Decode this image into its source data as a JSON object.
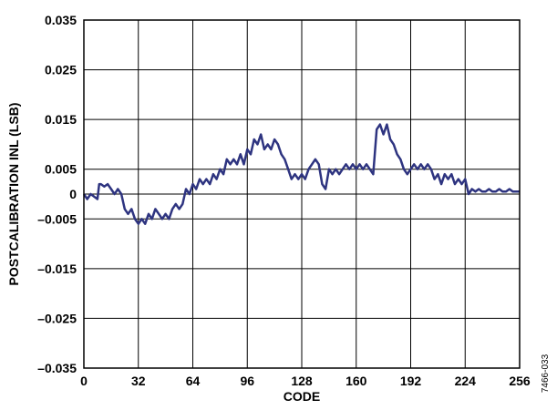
{
  "chart_data": {
    "type": "line",
    "title": "",
    "xlabel": "CODE",
    "ylabel": "POSTCALIBRATION INL (LSB)",
    "xlim": [
      0,
      256
    ],
    "ylim": [
      -0.035,
      0.035
    ],
    "grid": true,
    "x_ticks": [
      0,
      32,
      64,
      96,
      128,
      160,
      192,
      224,
      256
    ],
    "x_tick_labels": [
      "0",
      "32",
      "64",
      "96",
      "128",
      "160",
      "192",
      "224",
      "256"
    ],
    "y_ticks": [
      0.035,
      0.025,
      0.015,
      0.005,
      0,
      -0.005,
      -0.015,
      -0.025,
      -0.035
    ],
    "y_tick_labels": [
      "0.035",
      "0.025",
      "0.015",
      "0.005",
      "0",
      "–0.005",
      "–0.015",
      "–0.025",
      "–0.035"
    ],
    "line_color": "#2e3480",
    "figure_id": "7466-033",
    "series": [
      {
        "x": [
          0,
          2,
          4,
          6,
          8,
          9,
          10,
          12,
          14,
          16,
          18,
          20,
          22,
          24,
          26,
          28,
          30,
          32,
          34,
          36,
          38,
          40,
          42,
          44,
          46,
          48,
          50,
          52,
          54,
          56,
          58,
          60,
          62,
          64,
          66,
          68,
          70,
          72,
          74,
          76,
          78,
          80,
          82,
          84,
          86,
          88,
          90,
          92,
          94,
          96,
          98,
          100,
          102,
          104,
          106,
          108,
          110,
          112,
          114,
          116,
          118,
          120,
          122,
          124,
          126,
          128,
          130,
          132,
          134,
          136,
          138,
          140,
          142,
          144,
          146,
          148,
          150,
          152,
          154,
          156,
          158,
          160,
          162,
          164,
          166,
          168,
          170,
          172,
          174,
          176,
          178,
          180,
          182,
          184,
          186,
          188,
          190,
          192,
          194,
          196,
          198,
          200,
          202,
          204,
          206,
          208,
          210,
          212,
          214,
          216,
          218,
          220,
          222,
          224,
          226,
          228,
          230,
          232,
          234,
          236,
          238,
          240,
          242,
          244,
          246,
          248,
          250,
          252,
          254,
          256
        ],
        "y": [
          0,
          -0.001,
          0,
          -0.0005,
          -0.001,
          0.002,
          0.002,
          0.0015,
          0.002,
          0.001,
          0,
          0.001,
          0,
          -0.003,
          -0.004,
          -0.003,
          -0.005,
          -0.006,
          -0.005,
          -0.006,
          -0.004,
          -0.005,
          -0.003,
          -0.004,
          -0.005,
          -0.004,
          -0.005,
          -0.003,
          -0.002,
          -0.003,
          -0.002,
          0.001,
          0,
          0.002,
          0.001,
          0.003,
          0.002,
          0.003,
          0.002,
          0.004,
          0.003,
          0.005,
          0.004,
          0.007,
          0.006,
          0.007,
          0.006,
          0.008,
          0.006,
          0.009,
          0.008,
          0.011,
          0.01,
          0.012,
          0.009,
          0.01,
          0.009,
          0.011,
          0.01,
          0.008,
          0.007,
          0.005,
          0.003,
          0.004,
          0.003,
          0.004,
          0.003,
          0.005,
          0.006,
          0.007,
          0.006,
          0.002,
          0.001,
          0.005,
          0.004,
          0.005,
          0.004,
          0.005,
          0.006,
          0.005,
          0.006,
          0.005,
          0.006,
          0.005,
          0.006,
          0.005,
          0.004,
          0.013,
          0.014,
          0.012,
          0.014,
          0.011,
          0.01,
          0.008,
          0.007,
          0.005,
          0.004,
          0.005,
          0.006,
          0.005,
          0.006,
          0.005,
          0.006,
          0.005,
          0.003,
          0.004,
          0.002,
          0.004,
          0.003,
          0.004,
          0.002,
          0.003,
          0.002,
          0.003,
          0,
          0.001,
          0.0005,
          0.001,
          0.0005,
          0.0005,
          0.001,
          0.0005,
          0.0005,
          0.001,
          0.0005,
          0.0005,
          0.001,
          0.0005,
          0.0005,
          0.0005
        ]
      }
    ]
  }
}
